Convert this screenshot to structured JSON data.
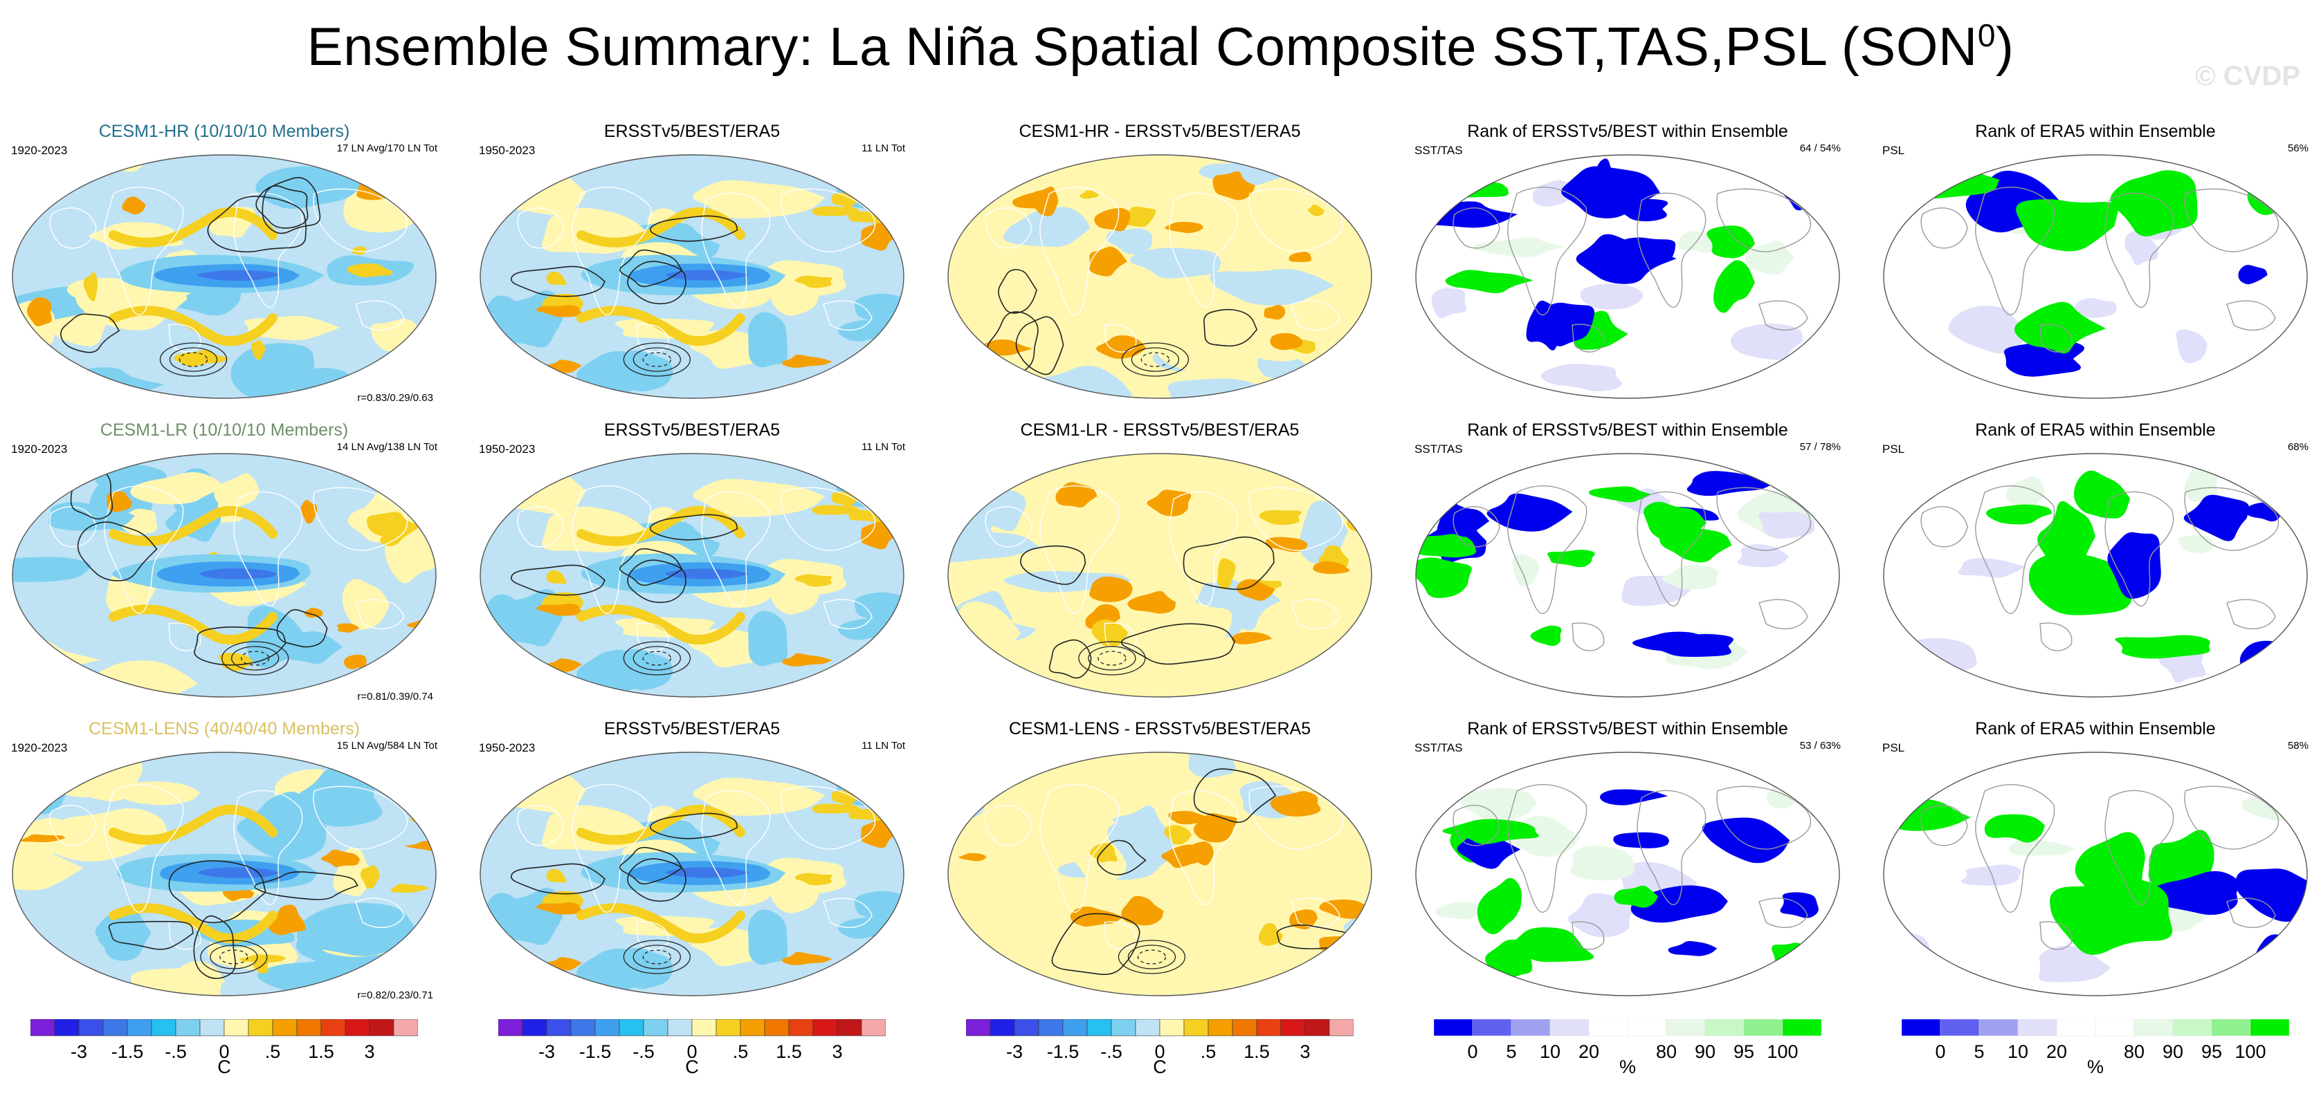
{
  "title": "Ensemble Summary: La Niña Spatial Composite SST,TAS,PSL (SON",
  "title_sup": "0",
  "title_close": ")",
  "watermark": "© CVDP",
  "rows": [
    {
      "model": {
        "title": "CESM1-HR (10/10/10 Members)",
        "title_color": "#1f6f8b",
        "left": "1920-2023",
        "right": "17 LN Avg/170 LN Tot",
        "corr": "r=0.83/0.29/0.63"
      },
      "obs": {
        "title": "ERSSTv5/BEST/ERA5",
        "left": "1950-2023",
        "right": "11 LN Tot"
      },
      "diff": {
        "title": "CESM1-HR - ERSSTv5/BEST/ERA5"
      },
      "rank_sst": {
        "title": "Rank of ERSSTv5/BEST within Ensemble",
        "left": "SST/TAS",
        "right": "64 /  54%"
      },
      "rank_psl": {
        "title": "Rank of ERA5 within Ensemble",
        "left": "PSL",
        "right": "56%"
      }
    },
    {
      "model": {
        "title": "CESM1-LR (10/10/10 Members)",
        "title_color": "#6f8f6a",
        "left": "1920-2023",
        "right": "14 LN Avg/138 LN Tot",
        "corr": "r=0.81/0.39/0.74"
      },
      "obs": {
        "title": "ERSSTv5/BEST/ERA5",
        "left": "1950-2023",
        "right": "11 LN Tot"
      },
      "diff": {
        "title": "CESM1-LR - ERSSTv5/BEST/ERA5"
      },
      "rank_sst": {
        "title": "Rank of ERSSTv5/BEST within Ensemble",
        "left": "SST/TAS",
        "right": "57 /  78%"
      },
      "rank_psl": {
        "title": "Rank of ERA5 within Ensemble",
        "left": "PSL",
        "right": "68%"
      }
    },
    {
      "model": {
        "title": "CESM1-LENS (40/40/40 Members)",
        "title_color": "#d8c060",
        "left": "1920-2023",
        "right": "15 LN Avg/584 LN Tot",
        "corr": "r=0.82/0.23/0.71"
      },
      "obs": {
        "title": "ERSSTv5/BEST/ERA5",
        "left": "1950-2023",
        "right": "11 LN Tot"
      },
      "diff": {
        "title": "CESM1-LENS - ERSSTv5/BEST/ERA5"
      },
      "rank_sst": {
        "title": "Rank of ERSSTv5/BEST within Ensemble",
        "left": "SST/TAS",
        "right": "53 /  63%"
      },
      "rank_psl": {
        "title": "Rank of ERA5 within Ensemble",
        "left": "PSL",
        "right": "58%"
      }
    }
  ],
  "chart_data": {
    "type": "heatmap",
    "temp_colorbar": {
      "unit": "C",
      "colors": [
        "#7b1fd9",
        "#2020e8",
        "#3a50e8",
        "#3d78e8",
        "#3fa0f0",
        "#28c0f0",
        "#7ed0f0",
        "#bfe2f5",
        "#fff7b0",
        "#f5d020",
        "#f5a000",
        "#f07800",
        "#e84010",
        "#d81818",
        "#c01818",
        "#f5a8a8"
      ],
      "tick_labels": [
        "-3",
        "-1.5",
        "-.5",
        "0",
        ".5",
        "1.5",
        "3"
      ]
    },
    "rank_colorbar": {
      "unit": "%",
      "colors": [
        "#0000ee",
        "#6060f0",
        "#a0a0f0",
        "#e0e0fa",
        "#ffffff",
        "#ffffff",
        "#e8f8e8",
        "#c8f8c8",
        "#90f090",
        "#00ee00"
      ],
      "tick_labels": [
        "0",
        "5",
        "10",
        "20",
        "80",
        "90",
        "95",
        "100"
      ]
    }
  }
}
